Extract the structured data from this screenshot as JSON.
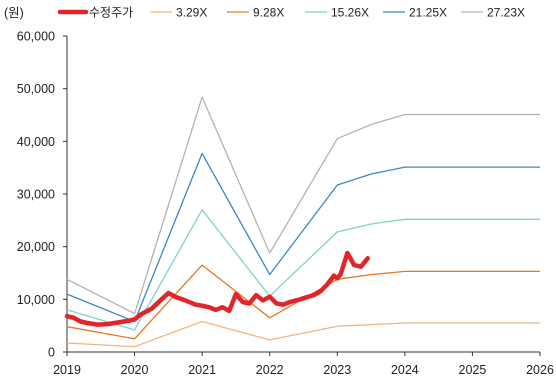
{
  "chart_data": {
    "type": "line",
    "unit_label": "(원)",
    "title": "",
    "xlabel": "",
    "ylabel": "",
    "xlim": [
      2019,
      2026
    ],
    "ylim": [
      0,
      60000
    ],
    "x_ticks": [
      "2019",
      "2020",
      "2021",
      "2022",
      "2023",
      "2024",
      "2025",
      "2026"
    ],
    "y_ticks": [
      "0",
      "10,000",
      "20,000",
      "30,000",
      "40,000",
      "50,000",
      "60,000"
    ],
    "legend_position": "top",
    "band_x": [
      2019,
      2020,
      2021,
      2022,
      2023,
      2023.5,
      2024,
      2025,
      2026
    ],
    "bands": [
      {
        "name": "3.29X",
        "color": "#f5b27a",
        "values": [
          1700,
          1000,
          5800,
          2300,
          4900,
          5200,
          5500,
          5500,
          5500
        ]
      },
      {
        "name": "9.28X",
        "color": "#e8771f",
        "values": [
          4800,
          2500,
          16500,
          6500,
          13800,
          14700,
          15300,
          15300,
          15300
        ]
      },
      {
        "name": "15.26X",
        "color": "#7fd3c4",
        "values": [
          8000,
          4200,
          27000,
          10600,
          22800,
          24300,
          25200,
          25200,
          25200
        ]
      },
      {
        "name": "21.25X",
        "color": "#3d86c6",
        "values": [
          11000,
          5800,
          37700,
          14700,
          31700,
          33800,
          35100,
          35100,
          35100
        ]
      },
      {
        "name": "27.23X",
        "color": "#b3b3b3",
        "values": [
          13800,
          7300,
          48400,
          18800,
          40500,
          43200,
          45100,
          45100,
          45100
        ]
      }
    ],
    "price": {
      "name": "수정주가",
      "color": "#e3242b",
      "x": [
        2019,
        2019.1,
        2019.2,
        2019.3,
        2019.45,
        2019.6,
        2019.75,
        2019.9,
        2020,
        2020.1,
        2020.25,
        2020.4,
        2020.5,
        2020.6,
        2020.75,
        2020.9,
        2021,
        2021.1,
        2021.2,
        2021.3,
        2021.4,
        2021.5,
        2021.6,
        2021.7,
        2021.8,
        2021.9,
        2022,
        2022.1,
        2022.2,
        2022.3,
        2022.45,
        2022.55,
        2022.65,
        2022.75,
        2022.85,
        2022.95,
        2023,
        2023.05,
        2023.15,
        2023.25,
        2023.35,
        2023.45
      ],
      "values": [
        6800,
        6500,
        5800,
        5500,
        5200,
        5300,
        5600,
        5900,
        6200,
        7200,
        8200,
        10000,
        11200,
        10500,
        9800,
        9000,
        8800,
        8500,
        8000,
        8500,
        7800,
        11000,
        9500,
        9200,
        10800,
        9800,
        10500,
        9200,
        9000,
        9500,
        10000,
        10400,
        10800,
        11500,
        12800,
        14500,
        14000,
        14800,
        18800,
        16500,
        16200,
        17800
      ]
    }
  }
}
